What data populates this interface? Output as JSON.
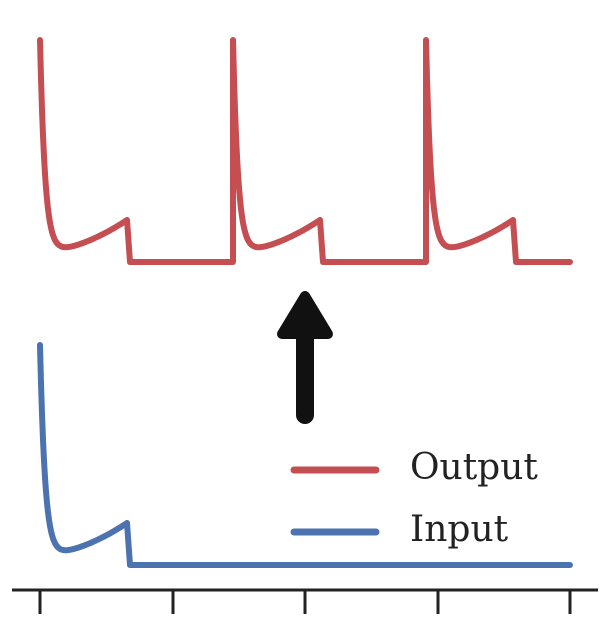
{
  "legend": [
    {
      "label": "Output",
      "color": "#c44e52"
    },
    {
      "label": "Input",
      "color": "#4c72b0"
    }
  ]
}
